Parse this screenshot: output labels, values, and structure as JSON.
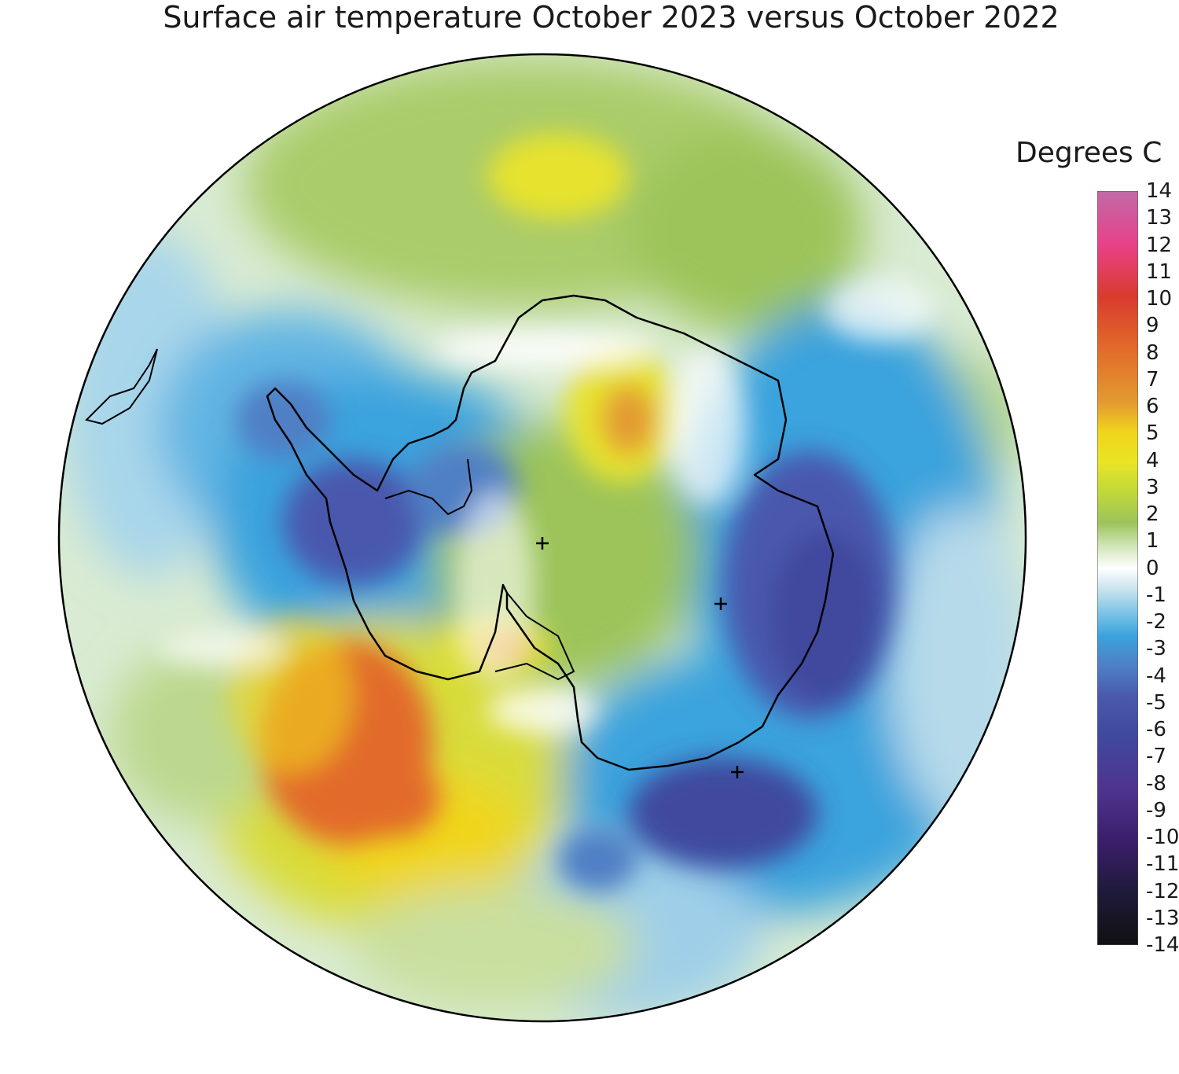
{
  "title": "Surface air temperature October 2023 versus October 2022",
  "legend": {
    "title": "Degrees C",
    "ticks": [
      "14",
      "13",
      "12",
      "11",
      "10",
      "9",
      "8",
      "7",
      "6",
      "5",
      "4",
      "3",
      "2",
      "1",
      "0",
      "-1",
      "-2",
      "-3",
      "-4",
      "-5",
      "-6",
      "-7",
      "-8",
      "-9",
      "-10",
      "-11",
      "-12",
      "-13",
      "-14"
    ],
    "colors": {
      "14": "#c06aa8",
      "12": "#e8428a",
      "10": "#d93b2d",
      "8": "#e26b2a",
      "6": "#e39a30",
      "5": "#f0d51c",
      "4": "#e9e425",
      "3": "#bfd83a",
      "2": "#9cc45a",
      "1": "#cfe3b5",
      "0": "#ffffff",
      "-1": "#c4e1ec",
      "-2": "#7bc4e6",
      "-3": "#3aa3dd",
      "-4": "#4f7fc4",
      "-5": "#4a59ad",
      "-6": "#3f4a9e",
      "-8": "#4e3590",
      "-10": "#3b1f6c",
      "-12": "#1e1a3a",
      "-14": "#111111"
    }
  },
  "map": {
    "projection": "south-polar-stereographic",
    "region": "Antarctica and Southern Ocean",
    "markers": [
      "plus-marker",
      "plus-marker",
      "plus-marker"
    ]
  }
}
